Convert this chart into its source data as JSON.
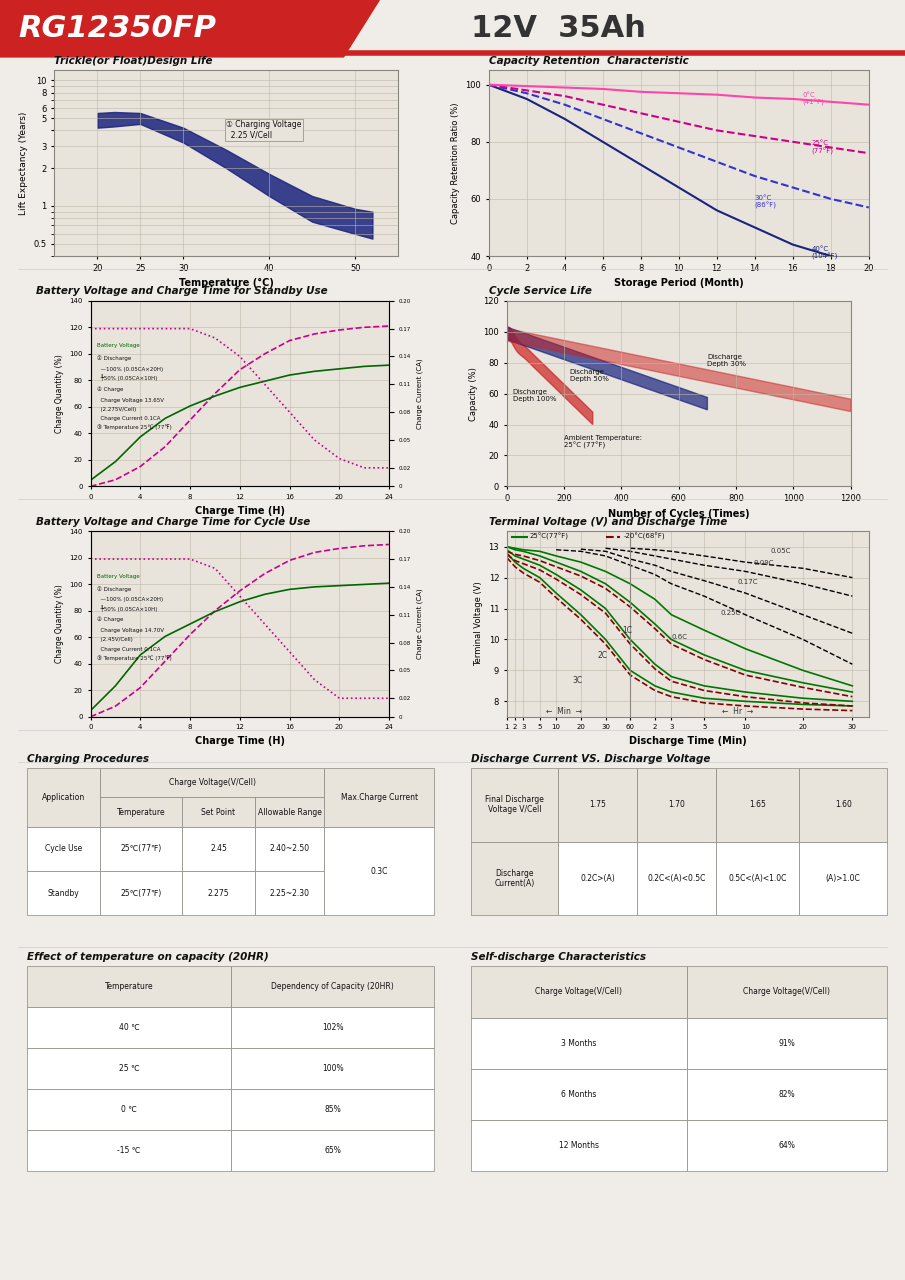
{
  "title_model": "RG12350FP",
  "title_spec": "12V  35Ah",
  "bg_color": "#f0ede8",
  "header_red": "#cc2222",
  "chart_bg": "#e8e4dc",
  "grid_color": "#b0a898",
  "section_title_color": "#111111",
  "charging_procedures": {
    "title": "Charging Procedures",
    "headers": [
      "Application",
      "Charge Voltage(V/Cell)",
      "",
      "",
      "Max.Charge Current"
    ],
    "subheaders": [
      "",
      "Temperature",
      "Set Point",
      "Allowable Range",
      ""
    ],
    "rows": [
      [
        "Cycle Use",
        "25℃(77℉)",
        "2.45",
        "2.40~2.50",
        "0.3C"
      ],
      [
        "Standby",
        "25℃(77℉)",
        "2.275",
        "2.25~2.30",
        ""
      ]
    ]
  },
  "discharge_current_vs_voltage": {
    "title": "Discharge Current VS. Discharge Voltage",
    "headers": [
      "Final Discharge\nVoltage V/Cell",
      "1.75",
      "1.70",
      "1.65",
      "1.60"
    ],
    "row": [
      "Discharge\nCurrent(A)",
      "0.2C>(A)",
      "0.2C<(A)<0.5C",
      "0.5C<(A)<1.0C",
      "(A)>1.0C"
    ]
  },
  "effect_temp": {
    "title": "Effect of temperature on capacity (20HR)",
    "headers": [
      "Temperature",
      "Dependency of Capacity (20HR)"
    ],
    "rows": [
      [
        "40 ℃",
        "102%"
      ],
      [
        "25 ℃",
        "100%"
      ],
      [
        "0 ℃",
        "85%"
      ],
      [
        "-15 ℃",
        "65%"
      ]
    ]
  },
  "self_discharge": {
    "title": "Self-discharge Characteristics",
    "headers": [
      "Charge Voltage(V/Cell)",
      "Charge Voltage(V/Cell)"
    ],
    "rows": [
      [
        "3 Months",
        "91%"
      ],
      [
        "6 Months",
        "82%"
      ],
      [
        "12 Months",
        "64%"
      ]
    ]
  }
}
